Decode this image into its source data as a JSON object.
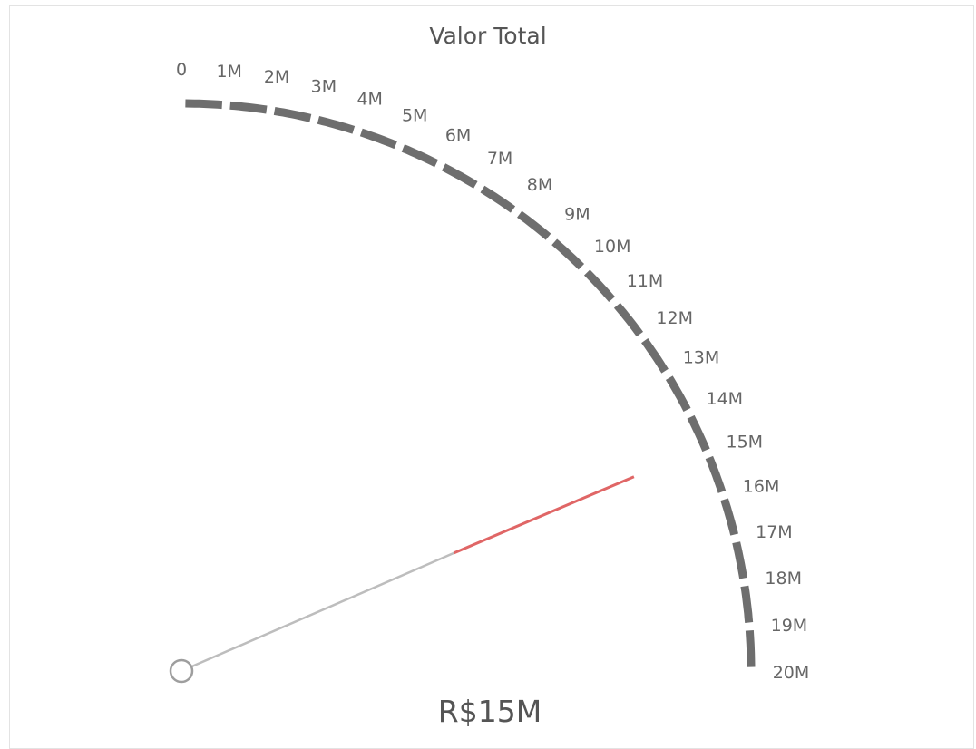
{
  "chart_data": {
    "type": "gauge",
    "title": "Valor Total",
    "value": 15000000,
    "value_label": "R$15M",
    "min": 0,
    "max": 20000000,
    "tick_labels": [
      "0",
      "1M",
      "2M",
      "3M",
      "4M",
      "5M",
      "6M",
      "7M",
      "8M",
      "9M",
      "10M",
      "11M",
      "12M",
      "13M",
      "14M",
      "15M",
      "16M",
      "17M",
      "18M",
      "19M",
      "20M"
    ],
    "colors": {
      "arc": "#6e6e6e",
      "needle_outer": "#e06666",
      "needle_inner": "#bdbdbd",
      "pivot": "#9e9e9e"
    }
  }
}
